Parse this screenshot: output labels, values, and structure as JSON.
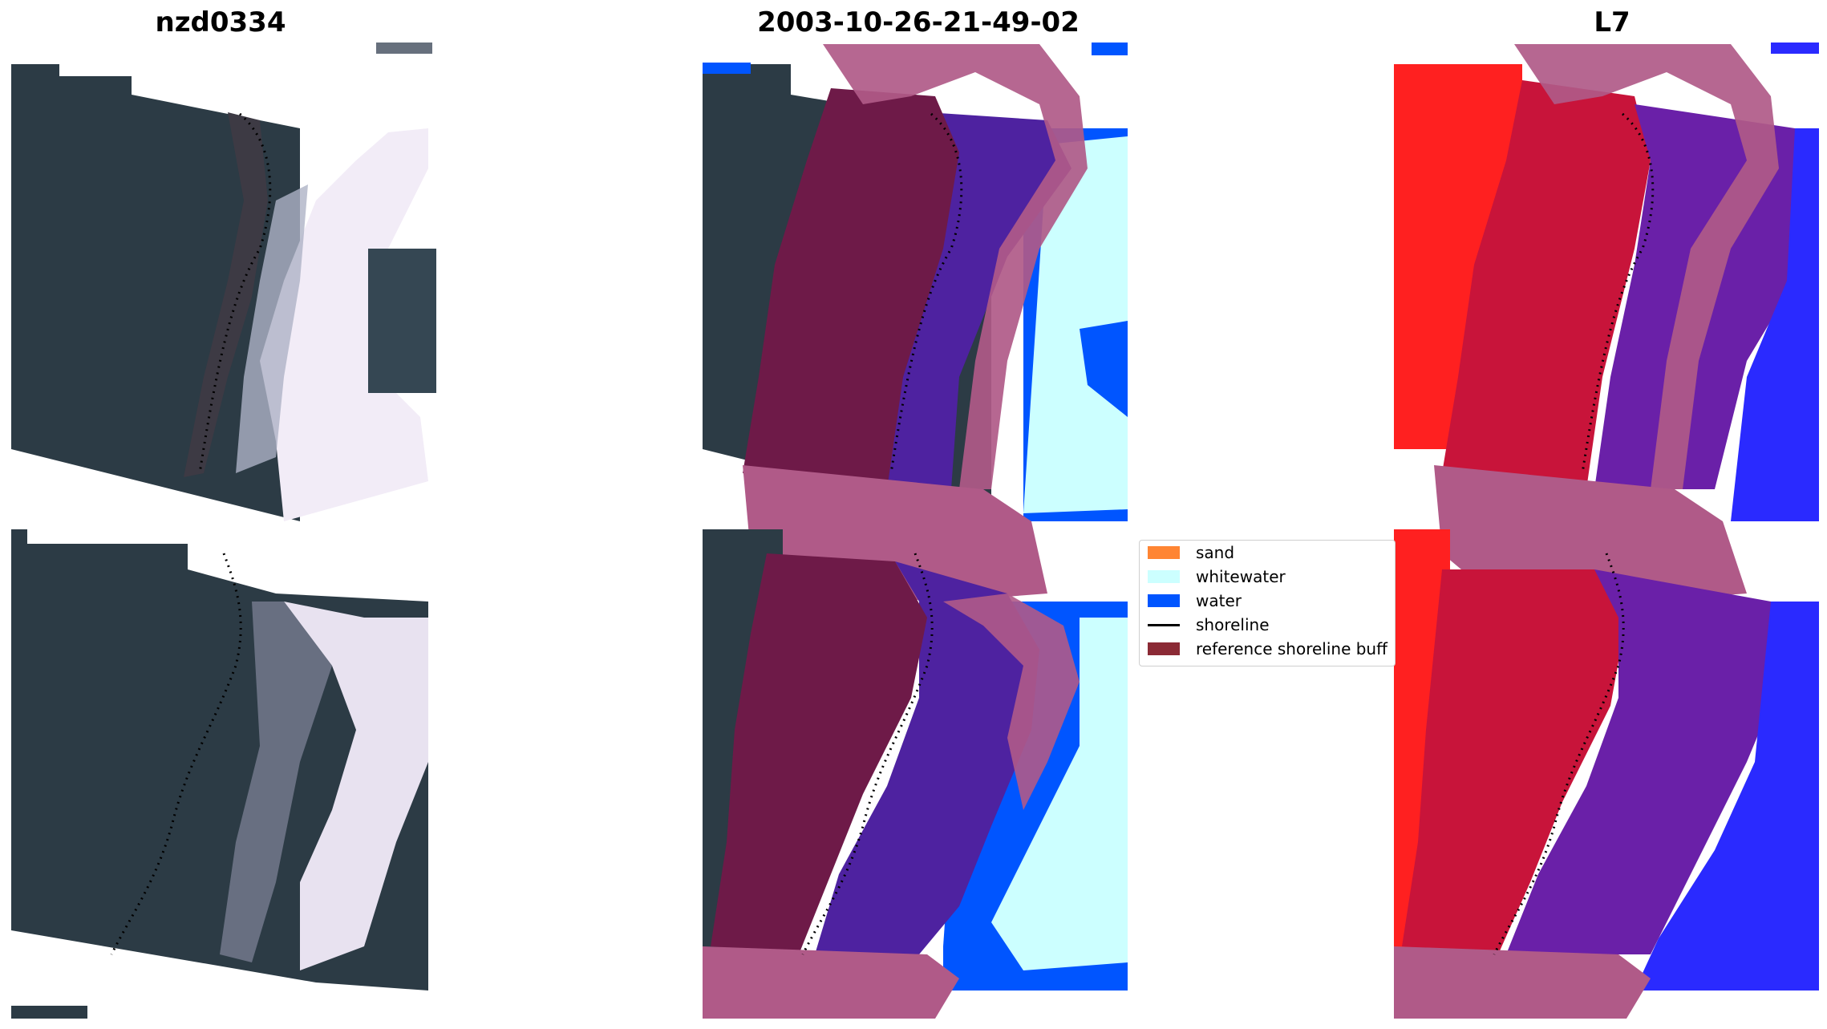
{
  "titles": {
    "left": "nzd0334",
    "center": "2003-10-26-21-49-02",
    "right": "L7"
  },
  "legend": {
    "items": [
      {
        "label": "sand",
        "color": "#ff8533",
        "kind": "patch"
      },
      {
        "label": "whitewater",
        "color": "#ccffff",
        "kind": "patch"
      },
      {
        "label": "water",
        "color": "#0055ff",
        "kind": "patch"
      },
      {
        "label": "shoreline",
        "color": "#000000",
        "kind": "line"
      },
      {
        "label": "reference shoreline buff",
        "color": "#8b2a35",
        "kind": "patch"
      }
    ]
  },
  "colors": {
    "land": "#2c3b45",
    "surf": "#f2ecf7",
    "buffer_overlay": "#b05a88",
    "buffer_dark": "#6e1a48",
    "class_water": "#0055ff",
    "class_whitewater": "#ccffff",
    "class_sea": "#4e22a0",
    "index_red": "#ff2020",
    "index_crimson": "#c8143a",
    "index_purple": "#6a20a8",
    "index_blue": "#2a2aff"
  }
}
